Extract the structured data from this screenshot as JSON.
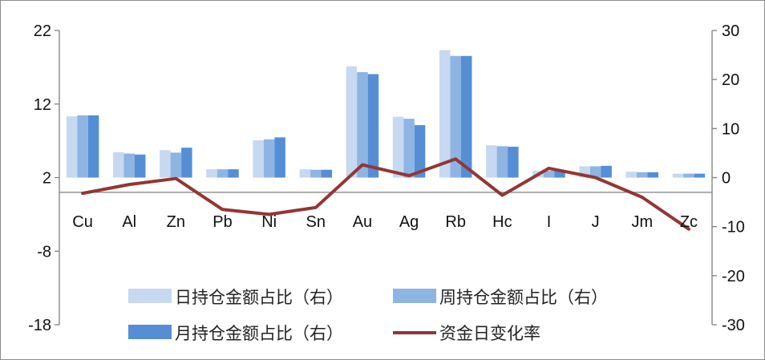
{
  "chart_data": {
    "type": "bar",
    "categories": [
      "Cu",
      "Al",
      "Zn",
      "Pb",
      "Ni",
      "Sn",
      "Au",
      "Ag",
      "Rb",
      "Hc",
      "I",
      "J",
      "Jm",
      "Zc"
    ],
    "left_axis": {
      "ylim": [
        -18,
        22
      ],
      "ticks": [
        "22",
        "12",
        "2",
        "-8",
        "-18"
      ],
      "tick_values": [
        22,
        12,
        2,
        -8,
        -18
      ]
    },
    "right_axis": {
      "ylim": [
        -30,
        30
      ],
      "ticks": [
        "30",
        "20",
        "10",
        "0",
        "-10",
        "-20",
        "-30"
      ],
      "tick_values": [
        30,
        20,
        10,
        0,
        -10,
        -20,
        -30
      ]
    },
    "series": [
      {
        "name": "日持仓金额占比（右）",
        "type": "bar",
        "axis": "right",
        "color": "#c6d9f1",
        "values": [
          12.5,
          5.2,
          5.6,
          1.7,
          7.6,
          1.7,
          22.7,
          12.4,
          26.0,
          6.6,
          1.4,
          2.3,
          1.2,
          0.8
        ]
      },
      {
        "name": "周持仓金额占比（右）",
        "type": "bar",
        "axis": "right",
        "color": "#8eb4e3",
        "values": [
          12.7,
          4.9,
          5.1,
          1.7,
          7.8,
          1.6,
          21.5,
          12.0,
          24.8,
          6.4,
          1.4,
          2.3,
          1.1,
          0.8
        ]
      },
      {
        "name": "月持仓金额占比（右）",
        "type": "bar",
        "axis": "right",
        "color": "#558ed5",
        "values": [
          12.7,
          4.7,
          6.1,
          1.7,
          8.2,
          1.6,
          21.1,
          10.7,
          24.8,
          6.3,
          1.5,
          2.4,
          1.1,
          0.8
        ]
      },
      {
        "name": "资金日变化率",
        "type": "line",
        "axis": "right",
        "color": "#943634",
        "values": [
          -3.2,
          -1.4,
          -0.2,
          -6.5,
          -7.5,
          -6.1,
          2.6,
          0.4,
          3.8,
          -3.6,
          1.9,
          0.0,
          -4.0,
          -10.5
        ]
      }
    ],
    "legend": {
      "placement": "bottom-center"
    },
    "grid": false,
    "title": "",
    "xlabel": "",
    "ylabel": ""
  }
}
